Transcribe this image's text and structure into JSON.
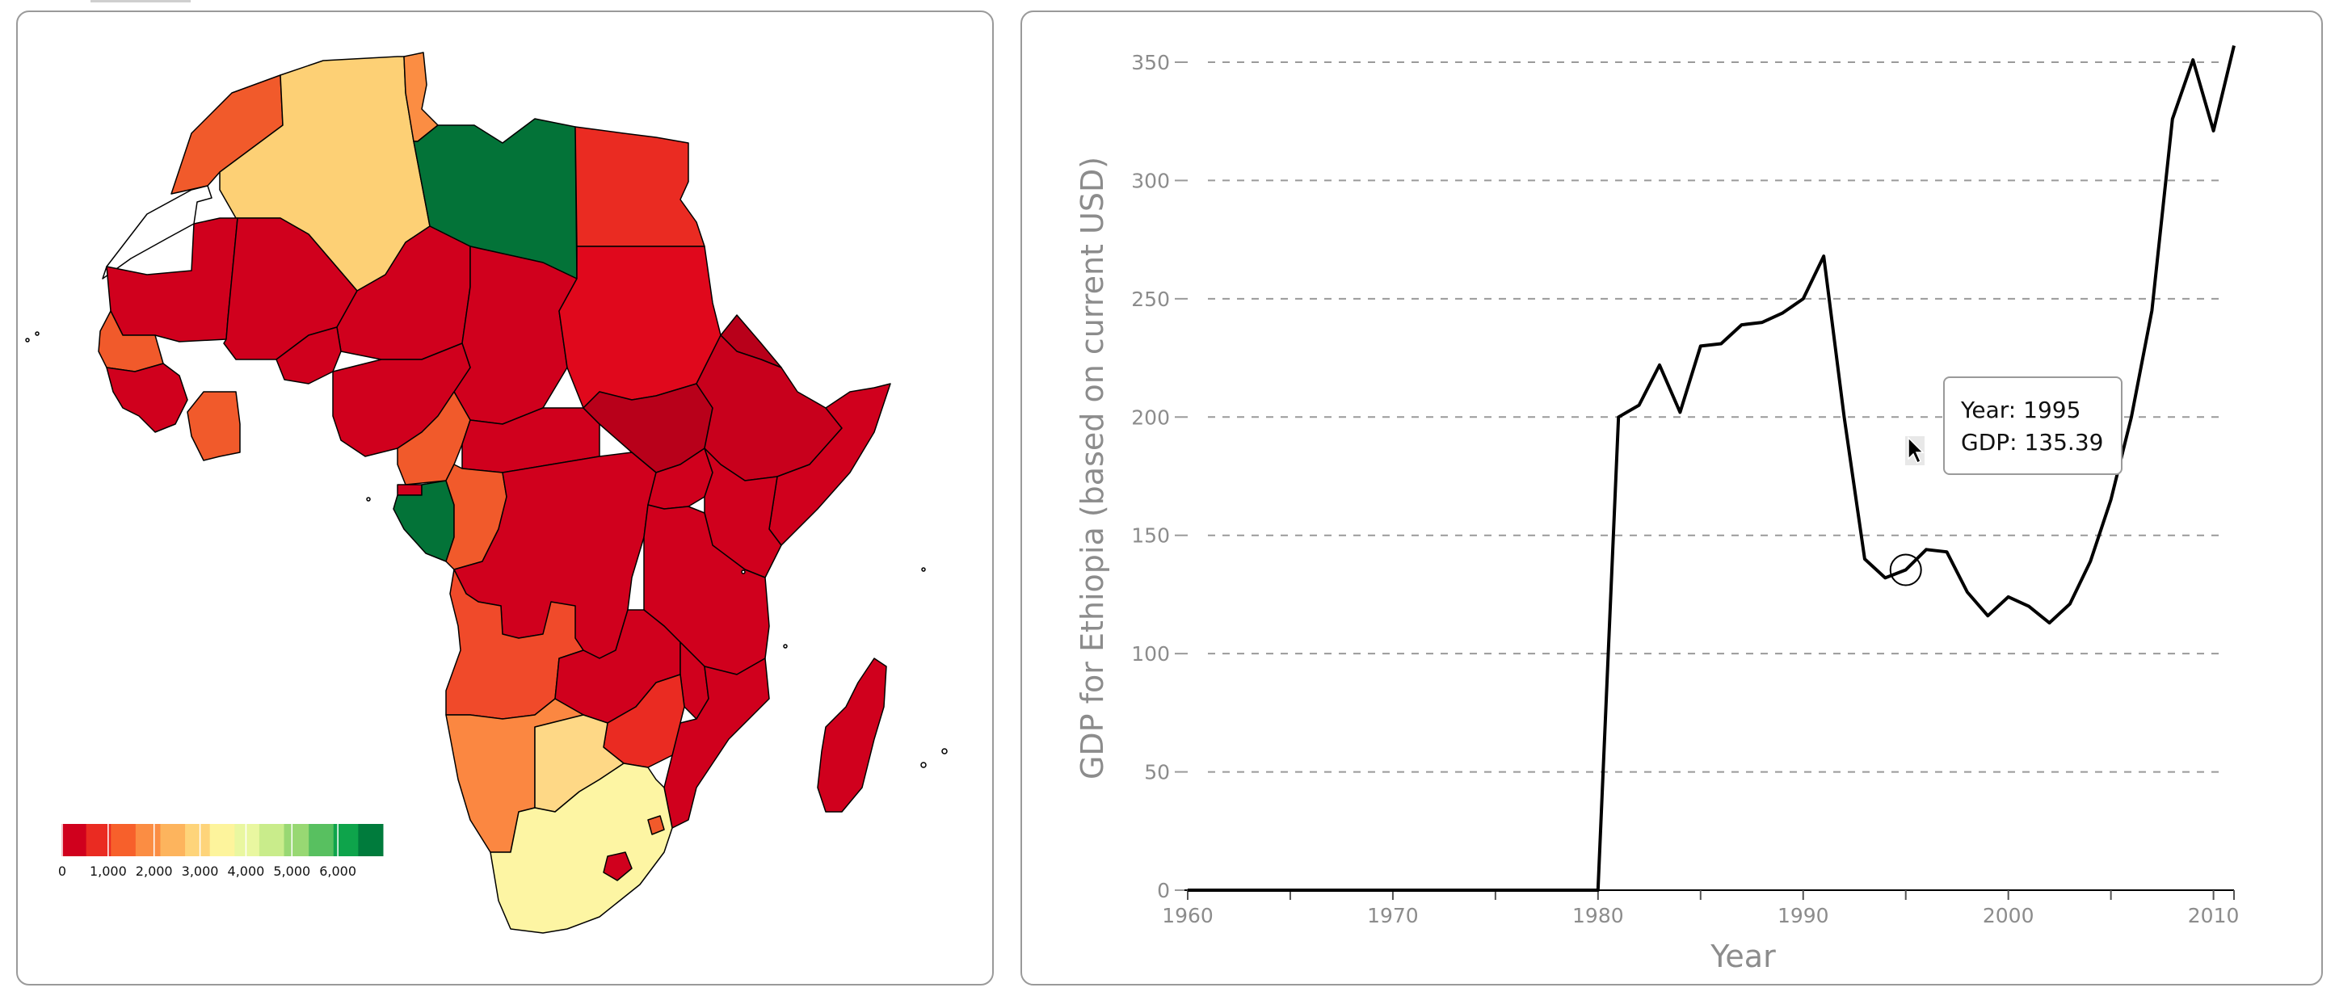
{
  "map": {
    "legend": {
      "colors": [
        "#d0001d",
        "#ea2b22",
        "#f7602b",
        "#fb8d43",
        "#fdb45d",
        "#fed47a",
        "#fdf49c",
        "#e9f7a0",
        "#c9ec8b",
        "#98d873",
        "#58c060",
        "#0ea44b",
        "#007b3c"
      ],
      "labels": [
        "0",
        "1,000",
        "2,000",
        "3,000",
        "4,000",
        "5,000",
        "6,000"
      ]
    },
    "regions": [
      {
        "name": "Morocco",
        "color": "#f15a2b"
      },
      {
        "name": "Western Sahara",
        "color": "#ffffff"
      },
      {
        "name": "Algeria",
        "color": "#fdd075"
      },
      {
        "name": "Tunisia",
        "color": "#fb8d43"
      },
      {
        "name": "Libya",
        "color": "#037338"
      },
      {
        "name": "Egypt",
        "color": "#ea2b22"
      },
      {
        "name": "Mauritania",
        "color": "#d0001d"
      },
      {
        "name": "Mali",
        "color": "#d0001d"
      },
      {
        "name": "Niger",
        "color": "#d0001d"
      },
      {
        "name": "Chad",
        "color": "#d0001d"
      },
      {
        "name": "Sudan",
        "color": "#e0081c"
      },
      {
        "name": "Senegal",
        "color": "#f15a2b"
      },
      {
        "name": "Guinea",
        "color": "#d0001d"
      },
      {
        "name": "Burkina Faso",
        "color": "#d0001d"
      },
      {
        "name": "Cote d'Ivoire",
        "color": "#f15a2b"
      },
      {
        "name": "Nigeria",
        "color": "#d0001d"
      },
      {
        "name": "Cameroon",
        "color": "#f15a2b"
      },
      {
        "name": "Central African Republic",
        "color": "#d0001d"
      },
      {
        "name": "South Sudan",
        "color": "#b8001a"
      },
      {
        "name": "Eritrea",
        "color": "#b8001a"
      },
      {
        "name": "Ethiopia",
        "color": "#c8001c"
      },
      {
        "name": "Somalia",
        "color": "#d0001d"
      },
      {
        "name": "Equatorial Guinea",
        "color": "#d0001d"
      },
      {
        "name": "Gabon",
        "color": "#037338"
      },
      {
        "name": "Congo",
        "color": "#f15a2b"
      },
      {
        "name": "DR Congo",
        "color": "#d0001d"
      },
      {
        "name": "Uganda",
        "color": "#d0001d"
      },
      {
        "name": "Kenya",
        "color": "#d0001d"
      },
      {
        "name": "Tanzania",
        "color": "#d0001d"
      },
      {
        "name": "Angola",
        "color": "#f04a2a"
      },
      {
        "name": "Zambia",
        "color": "#d0001d"
      },
      {
        "name": "Malawi",
        "color": "#d0001d"
      },
      {
        "name": "Mozambique",
        "color": "#d0001d"
      },
      {
        "name": "Zimbabwe",
        "color": "#ea2b22"
      },
      {
        "name": "Namibia",
        "color": "#fb8741"
      },
      {
        "name": "Botswana",
        "color": "#fed886"
      },
      {
        "name": "South Africa",
        "color": "#fdf5a3"
      },
      {
        "name": "Swaziland",
        "color": "#f15a2b"
      },
      {
        "name": "Lesotho",
        "color": "#d0001d"
      },
      {
        "name": "Madagascar",
        "color": "#d0001d"
      }
    ]
  },
  "chart_data": {
    "type": "line",
    "xlabel": "Year",
    "ylabel": "GDP for Ethiopia (based on current USD)",
    "xlim": [
      1960,
      2011
    ],
    "ylim": [
      0,
      350
    ],
    "xticks": [
      "1960",
      "1970",
      "1980",
      "1990",
      "2000",
      "2010"
    ],
    "yticks": [
      "0",
      "50",
      "100",
      "150",
      "200",
      "250",
      "300",
      "350"
    ],
    "grid": "horizontal-dashed",
    "series": [
      {
        "color": "#000000",
        "x": [
          1960,
          1961,
          1962,
          1963,
          1964,
          1965,
          1966,
          1967,
          1968,
          1969,
          1970,
          1971,
          1972,
          1973,
          1974,
          1975,
          1976,
          1977,
          1978,
          1979,
          1980,
          1981,
          1982,
          1983,
          1984,
          1985,
          1986,
          1987,
          1988,
          1989,
          1990,
          1991,
          1992,
          1993,
          1994,
          1995,
          1996,
          1997,
          1998,
          1999,
          2000,
          2001,
          2002,
          2003,
          2004,
          2005,
          2006,
          2007,
          2008,
          2009,
          2010,
          2011
        ],
        "y": [
          0,
          0,
          0,
          0,
          0,
          0,
          0,
          0,
          0,
          0,
          0,
          0,
          0,
          0,
          0,
          0,
          0,
          0,
          0,
          0,
          0,
          200,
          205,
          222,
          202,
          230,
          231,
          239,
          240,
          244,
          250,
          268,
          200,
          140,
          132,
          135.39,
          144,
          143,
          126,
          116,
          124,
          120,
          113,
          121,
          139,
          165,
          200,
          245,
          326,
          351,
          321,
          357
        ]
      }
    ],
    "highlight": {
      "x": 1995,
      "y": 135.39
    },
    "tooltip": {
      "year_text": "Year: 1995",
      "gdp_text": "GDP: 135.39"
    }
  }
}
